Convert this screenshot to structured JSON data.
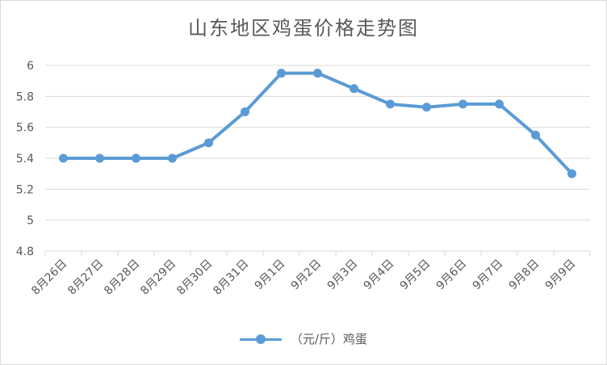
{
  "chart_data": {
    "type": "line",
    "title": "山东地区鸡蛋价格走势图",
    "categories": [
      "8月26日",
      "8月27日",
      "8月28日",
      "8月29日",
      "8月30日",
      "8月31日",
      "9月1日",
      "9月2日",
      "9月3日",
      "9月4日",
      "9月5日",
      "9月6日",
      "9月7日",
      "9月8日",
      "9月9日"
    ],
    "series": [
      {
        "name": "（元/斤）鸡蛋",
        "values": [
          5.4,
          5.4,
          5.4,
          5.4,
          5.5,
          5.7,
          5.95,
          5.95,
          5.85,
          5.75,
          5.73,
          5.75,
          5.75,
          5.55,
          5.3
        ],
        "color": "#5b9bd5"
      }
    ],
    "ylim": [
      4.8,
      6
    ],
    "yticks": [
      4.8,
      5,
      5.2,
      5.4,
      5.6,
      5.8,
      6
    ],
    "ytick_labels": [
      "4.8",
      "5",
      "5.2",
      "5.4",
      "5.6",
      "5.8",
      "6"
    ],
    "xlabel": "",
    "ylabel": "",
    "grid": true,
    "legend_position": "bottom"
  }
}
